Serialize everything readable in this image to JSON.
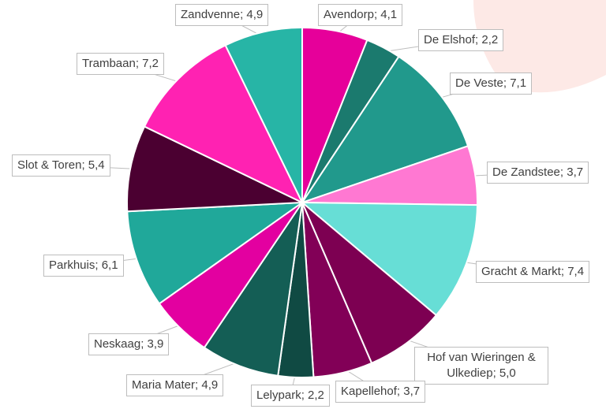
{
  "chart_data": {
    "type": "pie",
    "categories": [
      "Avendorp",
      "De Elshof",
      "De Veste",
      "De Zandstee",
      "Gracht & Markt",
      "Hof van Wieringen & Ulkediep",
      "Kapellehof",
      "Lelypark",
      "Maria Mater",
      "Neskaag",
      "Parkhuis",
      "Slot & Toren",
      "Trambaan",
      "Zandvenne"
    ],
    "values": [
      4.1,
      2.2,
      7.1,
      3.7,
      7.4,
      5.0,
      3.7,
      2.2,
      4.9,
      3.9,
      6.1,
      5.4,
      7.2,
      4.9
    ],
    "value_labels": [
      "4,1",
      "2,2",
      "7,1",
      "3,7",
      "7,4",
      "5,0",
      "3,7",
      "2,2",
      "4,9",
      "3,9",
      "6,1",
      "5,4",
      "7,2",
      "4,9"
    ],
    "label_separator": "; ",
    "colors": [
      "#e6009a",
      "#1b7a6e",
      "#21998c",
      "#ff78d2",
      "#67ded6",
      "#7d0052",
      "#820057",
      "#104a43",
      "#145e55",
      "#e300a0",
      "#20a89a",
      "#4b0031",
      "#ff22b2",
      "#27b5a6"
    ]
  }
}
